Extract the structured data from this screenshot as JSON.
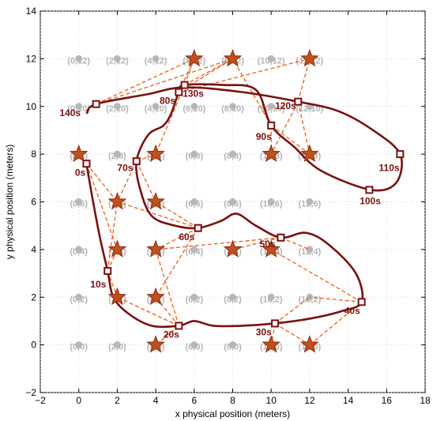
{
  "chart_data": {
    "type": "scatter",
    "title": "",
    "xlabel": "x physical position (meters)",
    "ylabel": "y physical position (meters)",
    "xlim": [
      -2,
      18
    ],
    "ylim": [
      -2,
      14
    ],
    "xticks": [
      "−2",
      "0",
      "2",
      "4",
      "6",
      "8",
      "10",
      "12",
      "14",
      "16",
      "18"
    ],
    "yticks": [
      "−2",
      "0",
      "2",
      "4",
      "6",
      "8",
      "10",
      "12",
      "14"
    ],
    "x_tick_values": [
      -2,
      0,
      2,
      4,
      6,
      8,
      10,
      12,
      14,
      16,
      18
    ],
    "y_tick_values": [
      -2,
      0,
      2,
      4,
      6,
      8,
      10,
      12,
      14
    ],
    "grid": true,
    "colors": {
      "grid_point": "#b8b8b8",
      "grid_label": "#b3b3b3",
      "star": "#c0501c",
      "star_edge": "#8b2a10",
      "dashed_link": "#e8601c",
      "trajectory": "#7a1010",
      "marker": "#7a1010"
    },
    "grid_points": [
      {
        "x": 0,
        "y": 0,
        "label": "(0,0)"
      },
      {
        "x": 2,
        "y": 0,
        "label": "(2,0)"
      },
      {
        "x": 4,
        "y": 0,
        "label": "(4,0)"
      },
      {
        "x": 6,
        "y": 0,
        "label": "(6,0)"
      },
      {
        "x": 8,
        "y": 0,
        "label": "(8,0)"
      },
      {
        "x": 10,
        "y": 0,
        "label": "(10,0)"
      },
      {
        "x": 12,
        "y": 0,
        "label": "(12,0)"
      },
      {
        "x": 0,
        "y": 2,
        "label": "(0,2)"
      },
      {
        "x": 2,
        "y": 2,
        "label": "(2,2)"
      },
      {
        "x": 4,
        "y": 2,
        "label": "(4,2)"
      },
      {
        "x": 6,
        "y": 2,
        "label": "(6,2)"
      },
      {
        "x": 8,
        "y": 2,
        "label": "(8,2)"
      },
      {
        "x": 10,
        "y": 2,
        "label": "(10,2)"
      },
      {
        "x": 12,
        "y": 2,
        "label": "(12,2)"
      },
      {
        "x": 0,
        "y": 4,
        "label": "(0,4)"
      },
      {
        "x": 2,
        "y": 4,
        "label": "(2,4)"
      },
      {
        "x": 4,
        "y": 4,
        "label": "(4,4)"
      },
      {
        "x": 6,
        "y": 4,
        "label": "(6,4)"
      },
      {
        "x": 8,
        "y": 4,
        "label": "(8,4)"
      },
      {
        "x": 10,
        "y": 4,
        "label": "(10,4)"
      },
      {
        "x": 12,
        "y": 4,
        "label": "(12,4)"
      },
      {
        "x": 0,
        "y": 6,
        "label": "(0,6)"
      },
      {
        "x": 2,
        "y": 6,
        "label": "(2,6)"
      },
      {
        "x": 4,
        "y": 6,
        "label": "(4,6)"
      },
      {
        "x": 6,
        "y": 6,
        "label": "(6,6)"
      },
      {
        "x": 8,
        "y": 6,
        "label": "(8,6)"
      },
      {
        "x": 10,
        "y": 6,
        "label": "(10,6)"
      },
      {
        "x": 12,
        "y": 6,
        "label": "(12,6)"
      },
      {
        "x": 0,
        "y": 8,
        "label": "(0,8)"
      },
      {
        "x": 2,
        "y": 8,
        "label": "(2,8)"
      },
      {
        "x": 4,
        "y": 8,
        "label": "(4,8)"
      },
      {
        "x": 6,
        "y": 8,
        "label": "(6,8)"
      },
      {
        "x": 8,
        "y": 8,
        "label": "(8,8)"
      },
      {
        "x": 10,
        "y": 8,
        "label": "(10,8)"
      },
      {
        "x": 12,
        "y": 8,
        "label": "(12,8)"
      },
      {
        "x": 0,
        "y": 10,
        "label": "(0,10)"
      },
      {
        "x": 2,
        "y": 10,
        "label": "(2,10)"
      },
      {
        "x": 4,
        "y": 10,
        "label": "(4,10)"
      },
      {
        "x": 6,
        "y": 10,
        "label": "(6,10)"
      },
      {
        "x": 8,
        "y": 10,
        "label": "(8,10)"
      },
      {
        "x": 10,
        "y": 10,
        "label": "(10,10)"
      },
      {
        "x": 12,
        "y": 10,
        "label": "(12,10)"
      },
      {
        "x": 0,
        "y": 12,
        "label": "(0,12)"
      },
      {
        "x": 2,
        "y": 12,
        "label": "(2,12)"
      },
      {
        "x": 4,
        "y": 12,
        "label": "(4,12)"
      },
      {
        "x": 6,
        "y": 12,
        "label": "(6,12)"
      },
      {
        "x": 8,
        "y": 12,
        "label": "(8,12)"
      },
      {
        "x": 10,
        "y": 12,
        "label": "(10,12)"
      },
      {
        "x": 12,
        "y": 12,
        "label": "(12,12)"
      }
    ],
    "stars": [
      {
        "x": 6,
        "y": 12
      },
      {
        "x": 8,
        "y": 12
      },
      {
        "x": 12,
        "y": 12
      },
      {
        "x": 0,
        "y": 8
      },
      {
        "x": 4,
        "y": 8
      },
      {
        "x": 10,
        "y": 8
      },
      {
        "x": 12,
        "y": 8
      },
      {
        "x": 2,
        "y": 6
      },
      {
        "x": 4,
        "y": 6
      },
      {
        "x": 2,
        "y": 4
      },
      {
        "x": 4,
        "y": 4
      },
      {
        "x": 8,
        "y": 4
      },
      {
        "x": 10,
        "y": 4
      },
      {
        "x": 2,
        "y": 2
      },
      {
        "x": 4,
        "y": 2
      },
      {
        "x": 4,
        "y": 0
      },
      {
        "x": 10,
        "y": 0
      },
      {
        "x": 12,
        "y": 0
      }
    ],
    "dashed_links": [
      [
        [
          0.4,
          7.6
        ],
        [
          0,
          8
        ]
      ],
      [
        [
          0.4,
          7.6
        ],
        [
          2,
          6
        ]
      ],
      [
        [
          0.4,
          7.6
        ],
        [
          2,
          4
        ]
      ],
      [
        [
          1.5,
          3.1
        ],
        [
          2,
          4
        ]
      ],
      [
        [
          1.5,
          3.1
        ],
        [
          2,
          2
        ]
      ],
      [
        [
          1.5,
          3.1
        ],
        [
          2,
          6
        ]
      ],
      [
        [
          5.2,
          0.8
        ],
        [
          4,
          0
        ]
      ],
      [
        [
          5.2,
          0.8
        ],
        [
          4,
          2
        ]
      ],
      [
        [
          5.2,
          0.8
        ],
        [
          2,
          2
        ]
      ],
      [
        [
          5.2,
          0.8
        ],
        [
          4,
          4
        ]
      ],
      [
        [
          10.2,
          0.9
        ],
        [
          10,
          0
        ]
      ],
      [
        [
          10.2,
          0.9
        ],
        [
          12,
          0
        ]
      ],
      [
        [
          10.2,
          0.9
        ],
        [
          12,
          2
        ]
      ],
      [
        [
          14.7,
          1.8
        ],
        [
          12,
          2
        ]
      ],
      [
        [
          14.7,
          1.8
        ],
        [
          12,
          0
        ]
      ],
      [
        [
          14.7,
          1.8
        ],
        [
          10,
          4
        ]
      ],
      [
        [
          10.5,
          4.5
        ],
        [
          8,
          4
        ]
      ],
      [
        [
          10.5,
          4.5
        ],
        [
          12,
          4
        ]
      ],
      [
        [
          10.5,
          4.5
        ],
        [
          4,
          4
        ]
      ],
      [
        [
          6.2,
          4.9
        ],
        [
          4,
          6
        ]
      ],
      [
        [
          6.2,
          4.9
        ],
        [
          4,
          4
        ]
      ],
      [
        [
          6.2,
          4.9
        ],
        [
          2,
          6
        ]
      ],
      [
        [
          6.2,
          4.9
        ],
        [
          4,
          2
        ]
      ],
      [
        [
          3,
          7.7
        ],
        [
          4,
          8
        ]
      ],
      [
        [
          3,
          7.7
        ],
        [
          2,
          6
        ]
      ],
      [
        [
          3,
          7.7
        ],
        [
          4,
          6
        ]
      ],
      [
        [
          10,
          9.2
        ],
        [
          10,
          8
        ]
      ],
      [
        [
          10,
          9.2
        ],
        [
          12,
          8
        ]
      ],
      [
        [
          10,
          9.2
        ],
        [
          8,
          12
        ]
      ],
      [
        [
          11.4,
          10.2
        ],
        [
          12,
          12
        ]
      ],
      [
        [
          11.4,
          10.2
        ],
        [
          12,
          8
        ]
      ],
      [
        [
          11.4,
          10.2
        ],
        [
          10,
          8
        ]
      ],
      [
        [
          5.5,
          10.9
        ],
        [
          6,
          12
        ]
      ],
      [
        [
          5.5,
          10.9
        ],
        [
          8,
          12
        ]
      ],
      [
        [
          5.5,
          10.9
        ],
        [
          4,
          8
        ]
      ],
      [
        [
          5.2,
          10.6
        ],
        [
          6,
          12
        ]
      ],
      [
        [
          5.2,
          10.6
        ],
        [
          12,
          12
        ]
      ],
      [
        [
          5.2,
          10.6
        ],
        [
          8,
          12
        ]
      ],
      [
        [
          0.9,
          10.1
        ],
        [
          6,
          12
        ]
      ],
      [
        [
          0.9,
          10.1
        ],
        [
          8,
          12
        ]
      ]
    ],
    "trajectory": {
      "name": "",
      "points": [
        [
          0.4,
          7.6
        ],
        [
          0.7,
          6.2
        ],
        [
          1.1,
          4.5
        ],
        [
          1.5,
          3.1
        ],
        [
          1.8,
          2.0
        ],
        [
          2.6,
          1.3
        ],
        [
          3.8,
          0.8
        ],
        [
          5.2,
          0.8
        ],
        [
          6.0,
          1.0
        ],
        [
          7.0,
          0.8
        ],
        [
          8.5,
          0.8
        ],
        [
          10.2,
          0.9
        ],
        [
          12.0,
          1.1
        ],
        [
          13.6,
          1.4
        ],
        [
          14.7,
          1.8
        ],
        [
          14.4,
          3.0
        ],
        [
          13.0,
          4.2
        ],
        [
          11.8,
          4.7
        ],
        [
          10.5,
          4.5
        ],
        [
          9.2,
          5.0
        ],
        [
          8.2,
          5.5
        ],
        [
          7.4,
          5.2
        ],
        [
          6.2,
          4.9
        ],
        [
          5.0,
          5.0
        ],
        [
          3.8,
          5.4
        ],
        [
          3.2,
          6.5
        ],
        [
          3.0,
          7.7
        ],
        [
          3.6,
          8.8
        ],
        [
          4.4,
          9.2
        ],
        [
          4.8,
          9.7
        ],
        [
          5.2,
          10.6
        ],
        [
          5.5,
          10.9
        ],
        [
          7.5,
          10.9
        ],
        [
          9.2,
          10.7
        ],
        [
          10.0,
          9.2
        ],
        [
          11.2,
          8.3
        ],
        [
          12.6,
          7.3
        ],
        [
          15.2,
          6.5
        ],
        [
          16.5,
          6.8
        ],
        [
          16.7,
          8.0
        ],
        [
          15.3,
          9.0
        ],
        [
          13.5,
          9.8
        ],
        [
          11.4,
          10.2
        ],
        [
          8.5,
          10.6
        ],
        [
          5.5,
          10.8
        ],
        [
          3.5,
          10.5
        ],
        [
          0.9,
          10.1
        ],
        [
          0.4,
          9.7
        ]
      ],
      "markers": [
        [
          0.4,
          7.6
        ],
        [
          1.5,
          3.1
        ],
        [
          5.2,
          0.8
        ],
        [
          10.2,
          0.9
        ],
        [
          14.7,
          1.8
        ],
        [
          10.5,
          4.5
        ],
        [
          6.2,
          4.9
        ],
        [
          3.0,
          7.7
        ],
        [
          10.0,
          9.2
        ],
        [
          15.1,
          6.5
        ],
        [
          16.7,
          8.0
        ],
        [
          11.4,
          10.2
        ],
        [
          5.2,
          10.6
        ],
        [
          5.5,
          10.9
        ],
        [
          0.9,
          10.1
        ]
      ]
    },
    "time_labels": [
      {
        "text": "0s",
        "x": -0.2,
        "y": 7.1
      },
      {
        "text": "10s",
        "x": 0.6,
        "y": 2.4
      },
      {
        "text": "20s",
        "x": 4.4,
        "y": 0.3
      },
      {
        "text": "30s",
        "x": 9.2,
        "y": 0.4
      },
      {
        "text": "40s",
        "x": 13.8,
        "y": 1.3
      },
      {
        "text": "50s",
        "x": 9.4,
        "y": 4.1
      },
      {
        "text": "60s",
        "x": 5.2,
        "y": 4.4
      },
      {
        "text": "70s",
        "x": 2.0,
        "y": 7.3
      },
      {
        "text": "90s",
        "x": 9.2,
        "y": 8.6
      },
      {
        "text": "100s",
        "x": 14.6,
        "y": 5.9
      },
      {
        "text": "110s",
        "x": 15.6,
        "y": 7.3
      },
      {
        "text": "120s",
        "x": 10.2,
        "y": 9.9
      },
      {
        "text": "130s",
        "x": 5.4,
        "y": 10.4
      },
      {
        "text": "80s",
        "x": 4.2,
        "y": 10.1
      },
      {
        "text": "140s",
        "x": -1.0,
        "y": 9.6
      }
    ]
  }
}
